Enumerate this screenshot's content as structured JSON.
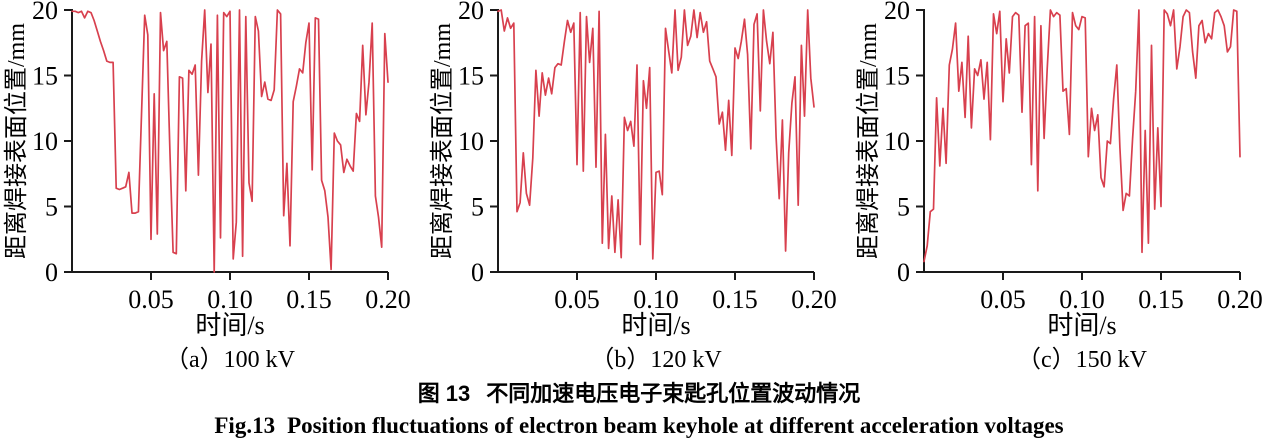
{
  "page": {
    "background": "#ffffff"
  },
  "style": {
    "axis_color": "#1a1a1a",
    "line_color": "#d8404e"
  },
  "figure": {
    "caption_zh_prefix": "图 13",
    "caption_zh_text": "不同加速电压电子束匙孔位置波动情况",
    "caption_en_prefix": "Fig.13",
    "caption_en_text": "Position fluctuations of electron beam keyhole at different acceleration voltages"
  },
  "chart_data": [
    {
      "type": "line",
      "panel_label": "（a）100 kV",
      "xlabel": "时间/s",
      "ylabel": "距离焊接表面位置/mm",
      "xlim": [
        0,
        0.2
      ],
      "ylim": [
        0,
        20
      ],
      "grid": false,
      "legend": "none",
      "xtick_values": [
        0.05,
        0.1,
        0.15,
        0.2
      ],
      "xtick_labels": [
        "0.05",
        "0.10",
        "0.15",
        "0.20"
      ],
      "ytick_values": [
        0,
        5,
        10,
        15,
        20
      ],
      "ytick_labels": [
        "0",
        "5",
        "10",
        "15",
        "20"
      ],
      "line_color": "#d8404e",
      "x_start": 0,
      "x_step": 0.002,
      "values": [
        19.9,
        19.9,
        19.8,
        19.9,
        19.4,
        19.9,
        19.8,
        19.2,
        18.4,
        17.6,
        16.9,
        16.1,
        16.0,
        16.0,
        6.4,
        6.3,
        6.4,
        6.5,
        7.6,
        4.5,
        4.5,
        4.6,
        12.0,
        19.6,
        18.1,
        2.5,
        13.6,
        2.9,
        19.8,
        16.9,
        17.6,
        9.0,
        1.5,
        1.4,
        14.9,
        14.8,
        6.2,
        15.4,
        15.1,
        15.8,
        7.4,
        16.1,
        20.0,
        13.7,
        17.4,
        0.0,
        19.6,
        2.6,
        19.8,
        19.5,
        19.9,
        1.0,
        3.8,
        20.0,
        1.2,
        19.5,
        6.8,
        5.4,
        19.5,
        18.4,
        13.4,
        14.5,
        13.2,
        13.1,
        13.9,
        20.0,
        19.7,
        4.3,
        8.3,
        2.0,
        13.0,
        14.2,
        15.5,
        15.2,
        17.5,
        19.0,
        7.8,
        19.4,
        19.3,
        7.0,
        6.2,
        4.2,
        0.2,
        10.6,
        10.0,
        9.7,
        7.6,
        8.6,
        8.1,
        7.7,
        12.1,
        11.5,
        17.3,
        12.0,
        14.5,
        19.0,
        5.8,
        4.2,
        1.9,
        18.2,
        14.5
      ]
    },
    {
      "type": "line",
      "panel_label": "（b）120 kV",
      "xlabel": "时间/s",
      "ylabel": "距离焊接表面位置/mm",
      "xlim": [
        0,
        0.2
      ],
      "ylim": [
        0,
        20
      ],
      "grid": false,
      "legend": "none",
      "xtick_values": [
        0.05,
        0.1,
        0.15,
        0.2
      ],
      "xtick_labels": [
        "0.05",
        "0.10",
        "0.15",
        "0.20"
      ],
      "ytick_values": [
        0,
        5,
        10,
        15,
        20
      ],
      "ytick_labels": [
        "0",
        "5",
        "10",
        "15",
        "20"
      ],
      "line_color": "#d8404e",
      "x_start": 0,
      "x_step": 0.002,
      "values": [
        19.9,
        20.0,
        18.4,
        19.4,
        18.6,
        19.0,
        4.6,
        5.3,
        9.1,
        6.0,
        5.1,
        8.7,
        15.4,
        11.9,
        15.2,
        13.5,
        14.8,
        13.6,
        15.6,
        15.9,
        15.8,
        17.6,
        19.2,
        18.3,
        19.0,
        8.2,
        19.8,
        7.7,
        19.5,
        16.0,
        18.6,
        8.0,
        19.9,
        2.2,
        10.5,
        1.8,
        5.8,
        1.5,
        5.5,
        1.1,
        11.8,
        10.8,
        11.5,
        9.6,
        15.8,
        2.1,
        14.6,
        12.5,
        15.6,
        1.0,
        7.6,
        7.7,
        5.9,
        18.6,
        16.9,
        15.2,
        20.0,
        15.4,
        16.4,
        20.0,
        17.3,
        18.0,
        20.0,
        17.9,
        19.8,
        18.3,
        19.1,
        16.1,
        15.5,
        14.9,
        11.3,
        12.2,
        9.3,
        13.1,
        8.9,
        17.1,
        16.3,
        17.6,
        19.3,
        16.6,
        9.4,
        18.9,
        19.7,
        12.3,
        20.0,
        17.6,
        15.9,
        18.3,
        10.3,
        5.6,
        11.6,
        1.6,
        9.1,
        12.9,
        14.9,
        5.1,
        17.3,
        11.9,
        20.0,
        14.8,
        12.6
      ]
    },
    {
      "type": "line",
      "panel_label": "（c）150 kV",
      "xlabel": "时间/s",
      "ylabel": "距离焊接表面位置/mm",
      "xlim": [
        0,
        0.2
      ],
      "ylim": [
        0,
        20
      ],
      "grid": false,
      "legend": "none",
      "xtick_values": [
        0.05,
        0.1,
        0.15,
        0.2
      ],
      "xtick_labels": [
        "0.05",
        "0.10",
        "0.15",
        "0.20"
      ],
      "ytick_values": [
        0,
        5,
        10,
        15,
        20
      ],
      "ytick_labels": [
        "0",
        "5",
        "10",
        "15",
        "20"
      ],
      "line_color": "#d8404e",
      "x_start": 0,
      "x_step": 0.002,
      "values": [
        0.8,
        2.0,
        4.6,
        4.8,
        13.3,
        8.1,
        12.5,
        8.3,
        15.8,
        17.0,
        19.0,
        13.8,
        16.0,
        11.8,
        18.0,
        11.0,
        15.5,
        15.0,
        16.2,
        13.2,
        16.0,
        10.1,
        19.7,
        18.2,
        19.9,
        13.0,
        17.8,
        15.2,
        19.5,
        19.8,
        19.6,
        12.2,
        18.8,
        19.0,
        8.2,
        19.5,
        6.2,
        18.8,
        10.2,
        15.5,
        20.0,
        19.5,
        19.8,
        19.6,
        13.8,
        14.0,
        10.5,
        19.8,
        18.8,
        18.5,
        19.5,
        19.4,
        8.8,
        12.5,
        10.8,
        12.0,
        7.2,
        6.5,
        10.0,
        9.8,
        13.2,
        15.8,
        9.5,
        4.7,
        6.0,
        5.8,
        10.2,
        13.8,
        20.0,
        1.5,
        10.8,
        2.2,
        17.3,
        4.8,
        11.0,
        5.0,
        20.0,
        19.7,
        18.8,
        20.0,
        15.5,
        17.2,
        19.5,
        20.0,
        19.8,
        16.8,
        14.8,
        18.8,
        19.2,
        17.5,
        18.2,
        17.8,
        19.8,
        20.0,
        19.5,
        18.8,
        16.8,
        17.2,
        20.0,
        19.9,
        8.8
      ]
    }
  ]
}
